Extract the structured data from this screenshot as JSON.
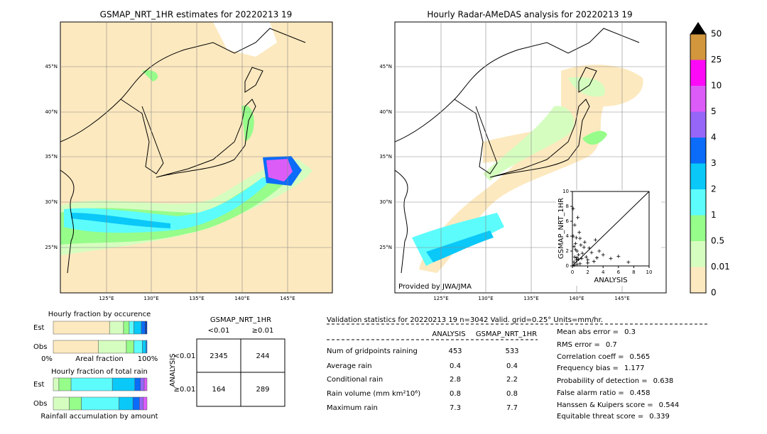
{
  "maps": [
    {
      "title": "GSMAP_NRT_1HR estimates for 20220213 19"
    },
    {
      "title": "Hourly Radar-AMeDAS analysis for 20220213 19",
      "credit": "Provided by JWA/JMA"
    }
  ],
  "map_ticks": {
    "lat": [
      "45°N",
      "40°N",
      "35°N",
      "30°N",
      "25°N"
    ],
    "lon": [
      "125°E",
      "130°E",
      "135°E",
      "140°E",
      "145°E"
    ]
  },
  "colorbar": {
    "levels": [
      0,
      0.01,
      0.5,
      1,
      2,
      3,
      4,
      5,
      10,
      25,
      50
    ],
    "colors": [
      "#fde9bf",
      "#d6fdc0",
      "#96fc8a",
      "#5cfcfc",
      "#0ac8f8",
      "#0a6cf8",
      "#9666f8",
      "#dc5cf8",
      "#fc0af8",
      "#d2963c"
    ]
  },
  "chart_data": {
    "type": "scatter",
    "xlabel": "ANALYSIS",
    "ylabel": "GSMAP_NRT_1HR",
    "xlim": [
      0,
      10
    ],
    "ylim": [
      0,
      10
    ],
    "xticks": [
      0,
      2,
      4,
      6,
      8,
      10
    ],
    "yticks": [
      0,
      2,
      4,
      6,
      8,
      10
    ],
    "x": [
      0.2,
      0.3,
      0.5,
      0.6,
      0.8,
      1.0,
      1.2,
      0.4,
      0.7,
      1.5,
      1.8,
      2.0,
      0.9,
      1.1,
      2.5,
      3.0,
      0.3,
      0.6,
      1.3,
      2.2,
      0.1,
      0.5,
      4.0,
      3.5,
      5.0,
      2.8,
      1.6,
      0.2,
      0.8,
      7.3,
      0.4,
      1.0,
      6.0,
      2.0,
      3.2,
      0.1,
      0.2,
      0.6
    ],
    "y": [
      0.5,
      1.2,
      0.8,
      2.0,
      1.5,
      0.3,
      1.0,
      3.0,
      6.5,
      2.5,
      1.2,
      0.4,
      4.5,
      2.8,
      1.8,
      3.5,
      5.5,
      0.2,
      1.7,
      2.4,
      7.7,
      3.8,
      1.5,
      2.0,
      1.0,
      0.6,
      3.2,
      0.1,
      0.9,
      0.5,
      2.2,
      3.7,
      1.3,
      0.8,
      1.1,
      4.0,
      2.6,
      1.1
    ]
  },
  "occurrence": {
    "title": "Hourly fraction by occurence",
    "xlabel": "Areal fraction",
    "xlim": [
      0,
      100
    ],
    "xticks": [
      {
        "value": 0,
        "label": "0%"
      },
      {
        "value": 100,
        "label": "100%"
      }
    ],
    "colors": [
      "#fde9bf",
      "#d6fdc0",
      "#96fc8a",
      "#5cfcfc",
      "#0ac8f8",
      "#0a6cf8",
      "#0a3cb0"
    ],
    "rows": [
      {
        "name": "Est",
        "values": [
          60,
          15,
          6,
          5,
          8,
          4,
          2
        ]
      },
      {
        "name": "Obs",
        "values": [
          48,
          30,
          8,
          9,
          4,
          1,
          0
        ]
      }
    ]
  },
  "total_rain": {
    "title": "Hourly fraction of total rain",
    "xlabel": "Rainfall accumulation by amount",
    "xlim": [
      0,
      100
    ],
    "colors": [
      "#d6fdc0",
      "#96fc8a",
      "#5cfcfc",
      "#0ac8f8",
      "#0a6cf8",
      "#9666f8",
      "#dc5cf8"
    ],
    "rows": [
      {
        "name": "Est",
        "values": [
          6,
          13,
          44,
          24,
          6,
          4,
          3
        ]
      },
      {
        "name": "Obs",
        "values": [
          17,
          13,
          40,
          15,
          7,
          4,
          4
        ]
      }
    ]
  },
  "contingency": {
    "title": "GSMAP_NRT_1HR",
    "col_labels": [
      "<0.01",
      "≥0.01"
    ],
    "row_labels": [
      "<0.01",
      "≥0.01"
    ],
    "axis_label": "ANALYSIS",
    "cells": [
      [
        2345,
        244
      ],
      [
        164,
        289
      ]
    ]
  },
  "validation": {
    "title": "Validation statistics for 20220213 19  n=3042 Valid. grid=0.25° Units=mm/hr.",
    "columns": [
      "ANALYSIS",
      "GSMAP_NRT_1HR"
    ],
    "rows": [
      {
        "label": "Num of gridpoints raining",
        "analysis": 453,
        "gsmap": 533
      },
      {
        "label": "Average rain",
        "analysis": 0.4,
        "gsmap": 0.4
      },
      {
        "label": "Conditional rain",
        "analysis": 2.8,
        "gsmap": 2.2
      },
      {
        "label": "Rain volume (mm km²10⁶)",
        "analysis": 0.8,
        "gsmap": 0.8
      },
      {
        "label": "Maximum rain",
        "analysis": 7.3,
        "gsmap": 7.7
      }
    ],
    "scores": [
      {
        "label": "Mean abs error =",
        "value": 0.3
      },
      {
        "label": "RMS error =",
        "value": 0.7
      },
      {
        "label": "Correlation coeff =",
        "value": 0.565
      },
      {
        "label": "Frequency bias =",
        "value": 1.177
      },
      {
        "label": "Probability of detection =",
        "value": 0.638
      },
      {
        "label": "False alarm ratio =",
        "value": 0.458
      },
      {
        "label": "Hanssen & Kuipers score =",
        "value": 0.544
      },
      {
        "label": "Equitable threat score =",
        "value": 0.339
      }
    ]
  }
}
